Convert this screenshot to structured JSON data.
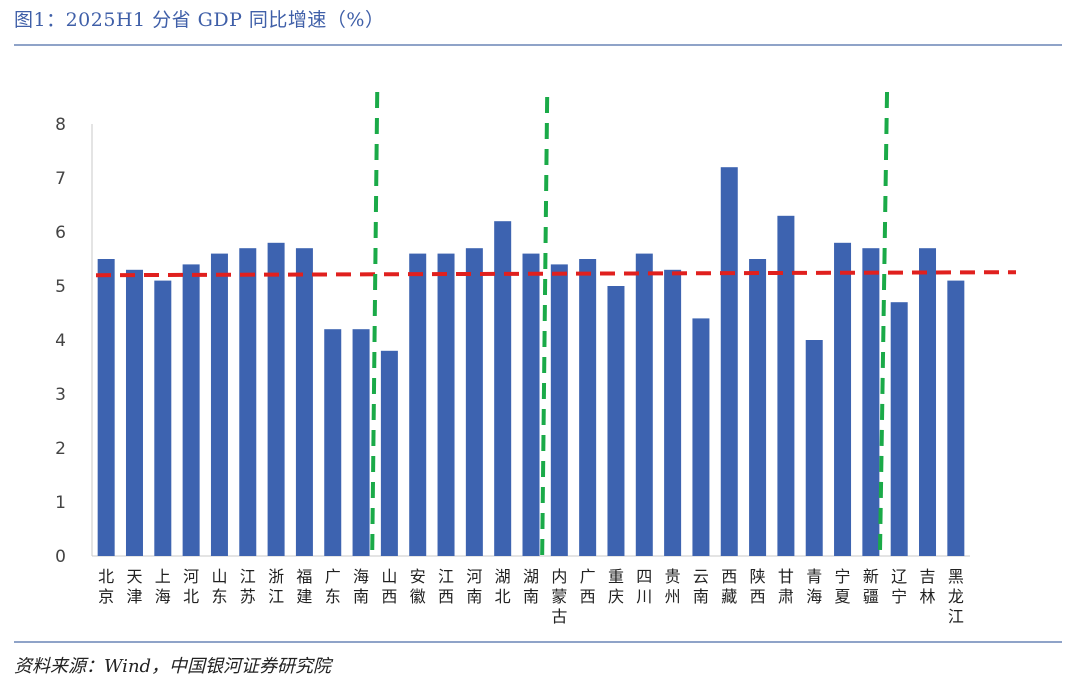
{
  "header": {
    "title": "图1：2025H1 分省 GDP 同比增速（%）"
  },
  "footer": {
    "source": "资料来源：Wind，中国银河证券研究院"
  },
  "colors": {
    "bar": "#3d63b0",
    "average_line": "#e0201e",
    "divider_line": "#1aaa48",
    "axis": "#c8c8c8"
  },
  "chart_data": {
    "type": "bar",
    "title": "2025H1 分省 GDP 同比增速（%）",
    "xlabel": "",
    "ylabel": "",
    "ylim": [
      0,
      8
    ],
    "yticks": [
      0,
      1,
      2,
      3,
      4,
      5,
      6,
      7,
      8
    ],
    "categories": [
      "北京",
      "天津",
      "上海",
      "河北",
      "山东",
      "江苏",
      "浙江",
      "福建",
      "广东",
      "海南",
      "山西",
      "安徽",
      "江西",
      "河南",
      "湖北",
      "湖南",
      "内蒙古",
      "广西",
      "重庆",
      "四川",
      "贵州",
      "云南",
      "西藏",
      "陕西",
      "甘肃",
      "青海",
      "宁夏",
      "新疆",
      "辽宁",
      "吉林",
      "黑龙江"
    ],
    "values": [
      5.5,
      5.3,
      5.1,
      5.4,
      5.6,
      5.7,
      5.8,
      5.7,
      4.2,
      4.2,
      3.8,
      5.6,
      5.6,
      5.7,
      6.2,
      5.6,
      5.4,
      5.5,
      5.0,
      5.6,
      5.3,
      4.4,
      7.2,
      5.5,
      6.3,
      4.0,
      5.8,
      5.7,
      4.7,
      5.7,
      5.1
    ],
    "average_line": {
      "value": 5.2,
      "style": "dashed"
    },
    "region_dividers_after": [
      "海南",
      "湖南",
      "新疆"
    ],
    "legend": "none",
    "grid": false
  }
}
